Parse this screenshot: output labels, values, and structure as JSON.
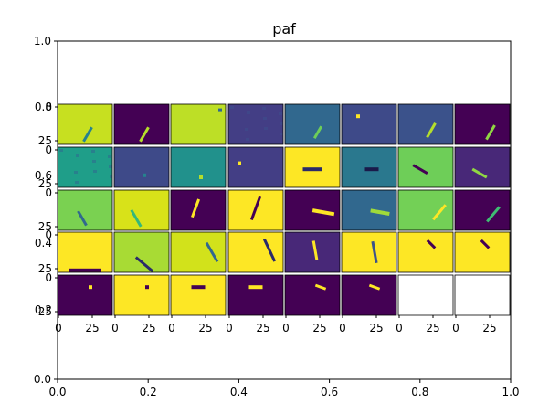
{
  "chart_data": {
    "type": "heatmap",
    "title": "paf",
    "outer_axes": {
      "xlim": [
        0.0,
        1.0
      ],
      "ylim": [
        0.0,
        1.0
      ],
      "x_ticks": [
        "0.0",
        "0.2",
        "0.4",
        "0.6",
        "0.8",
        "1.0"
      ],
      "y_ticks": [
        "0.0",
        "1.0"
      ]
    },
    "grid": {
      "rows": 5,
      "cols": 8,
      "panel_x_ticks": [
        "0",
        "25"
      ],
      "panel_y_ticks": [
        "0",
        "25"
      ],
      "row_label_overlaps": [
        "0.8",
        "0.6",
        "0.4",
        "0.2"
      ]
    },
    "colormap": "viridis",
    "panels": [
      {
        "bg": "#c7e020",
        "feature": {
          "x": 0.55,
          "y": 0.75,
          "kind": "streak",
          "color": "#26828e",
          "angle": -60,
          "len": 0.3
        }
      },
      {
        "bg": "#440154",
        "feature": {
          "x": 0.55,
          "y": 0.75,
          "kind": "streak",
          "color": "#b5de2b",
          "angle": -60,
          "len": 0.3
        }
      },
      {
        "bg": "#bddf26",
        "feature": {
          "x": 0.9,
          "y": 0.15,
          "kind": "dot",
          "color": "#31688e"
        }
      },
      {
        "bg": "#433e85",
        "feature": {
          "x": 0.5,
          "y": 0.5,
          "kind": "noise",
          "color": "#3e4a89"
        }
      },
      {
        "bg": "#31688e",
        "feature": {
          "x": 0.6,
          "y": 0.7,
          "kind": "streak",
          "color": "#6ece58",
          "angle": -60,
          "len": 0.25
        }
      },
      {
        "bg": "#3e4a89",
        "feature": {
          "x": 0.3,
          "y": 0.3,
          "kind": "dot",
          "color": "#fde725"
        }
      },
      {
        "bg": "#3b528b",
        "feature": {
          "x": 0.6,
          "y": 0.65,
          "kind": "streak",
          "color": "#b5de2b",
          "angle": -60,
          "len": 0.3
        }
      },
      {
        "bg": "#440154",
        "feature": {
          "x": 0.65,
          "y": 0.7,
          "kind": "streak",
          "color": "#90d743",
          "angle": -60,
          "len": 0.3
        }
      },
      {
        "bg": "#1f9e89",
        "feature": {
          "x": 0.5,
          "y": 0.5,
          "kind": "noise",
          "color": "#2a788e"
        }
      },
      {
        "bg": "#3e4a89",
        "feature": {
          "x": 0.55,
          "y": 0.7,
          "kind": "dot",
          "color": "#26828e"
        }
      },
      {
        "bg": "#21918c",
        "feature": {
          "x": 0.55,
          "y": 0.75,
          "kind": "dot",
          "color": "#b5de2b"
        }
      },
      {
        "bg": "#433e85",
        "feature": {
          "x": 0.2,
          "y": 0.4,
          "kind": "dot",
          "color": "#fde725"
        }
      },
      {
        "bg": "#fde725",
        "feature": {
          "x": 0.5,
          "y": 0.55,
          "kind": "bar",
          "color": "#2a2a6a",
          "angle": 0,
          "len": 0.35
        }
      },
      {
        "bg": "#2a788e",
        "feature": {
          "x": 0.55,
          "y": 0.55,
          "kind": "bar",
          "color": "#1a1a4a",
          "angle": 0,
          "len": 0.25
        }
      },
      {
        "bg": "#6ece58",
        "feature": {
          "x": 0.4,
          "y": 0.55,
          "kind": "streak",
          "color": "#440154",
          "angle": 30,
          "len": 0.3
        }
      },
      {
        "bg": "#482878",
        "feature": {
          "x": 0.45,
          "y": 0.65,
          "kind": "streak",
          "color": "#90d743",
          "angle": 30,
          "len": 0.3
        }
      },
      {
        "bg": "#7ad151",
        "feature": {
          "x": 0.45,
          "y": 0.7,
          "kind": "streak",
          "color": "#31688e",
          "angle": 60,
          "len": 0.3
        }
      },
      {
        "bg": "#d8e219",
        "feature": {
          "x": 0.4,
          "y": 0.7,
          "kind": "streak",
          "color": "#35b779",
          "angle": 60,
          "len": 0.35
        }
      },
      {
        "bg": "#440154",
        "feature": {
          "x": 0.45,
          "y": 0.45,
          "kind": "streak",
          "color": "#fde725",
          "angle": -70,
          "len": 0.35
        }
      },
      {
        "bg": "#fde725",
        "feature": {
          "x": 0.5,
          "y": 0.45,
          "kind": "streak",
          "color": "#440154",
          "angle": -70,
          "len": 0.45
        }
      },
      {
        "bg": "#440154",
        "feature": {
          "x": 0.7,
          "y": 0.55,
          "kind": "bar",
          "color": "#fde725",
          "angle": 10,
          "len": 0.4
        }
      },
      {
        "bg": "#31688e",
        "feature": {
          "x": 0.7,
          "y": 0.55,
          "kind": "bar",
          "color": "#9fda3a",
          "angle": 10,
          "len": 0.35
        }
      },
      {
        "bg": "#73d056",
        "feature": {
          "x": 0.75,
          "y": 0.55,
          "kind": "streak",
          "color": "#fde725",
          "angle": -50,
          "len": 0.35
        }
      },
      {
        "bg": "#440154",
        "feature": {
          "x": 0.7,
          "y": 0.6,
          "kind": "streak",
          "color": "#3fbc73",
          "angle": -50,
          "len": 0.35
        }
      },
      {
        "bg": "#fde725",
        "feature": {
          "x": 0.5,
          "y": 0.95,
          "kind": "bar",
          "color": "#440154",
          "angle": 0,
          "len": 0.6
        }
      },
      {
        "bg": "#a8db34",
        "feature": {
          "x": 0.55,
          "y": 0.8,
          "kind": "streak",
          "color": "#2a2a6a",
          "angle": 40,
          "len": 0.4
        }
      },
      {
        "bg": "#d2e21b",
        "feature": {
          "x": 0.75,
          "y": 0.5,
          "kind": "streak",
          "color": "#31688e",
          "angle": 60,
          "len": 0.4
        }
      },
      {
        "bg": "#fde725",
        "feature": {
          "x": 0.75,
          "y": 0.45,
          "kind": "streak",
          "color": "#2a2a6a",
          "angle": 65,
          "len": 0.45
        }
      },
      {
        "bg": "#482878",
        "feature": {
          "x": 0.55,
          "y": 0.45,
          "kind": "streak",
          "color": "#fde725",
          "angle": 80,
          "len": 0.35
        }
      },
      {
        "bg": "#fde725",
        "feature": {
          "x": 0.6,
          "y": 0.5,
          "kind": "streak",
          "color": "#3b528b",
          "angle": 80,
          "len": 0.4
        }
      },
      {
        "bg": "#fde725",
        "feature": {
          "x": 0.6,
          "y": 0.3,
          "kind": "streak",
          "color": "#440154",
          "angle": 45,
          "len": 0.2
        }
      },
      {
        "bg": "#fde725",
        "feature": {
          "x": 0.55,
          "y": 0.3,
          "kind": "streak",
          "color": "#440154",
          "angle": 45,
          "len": 0.2
        }
      },
      {
        "bg": "#440154",
        "feature": {
          "x": 0.6,
          "y": 0.3,
          "kind": "dot",
          "color": "#fde725"
        }
      },
      {
        "bg": "#fde725",
        "feature": {
          "x": 0.6,
          "y": 0.3,
          "kind": "dot",
          "color": "#440154"
        }
      },
      {
        "bg": "#fde725",
        "feature": {
          "x": 0.5,
          "y": 0.3,
          "kind": "bar",
          "color": "#440154",
          "angle": 0,
          "len": 0.25
        }
      },
      {
        "bg": "#440154",
        "feature": {
          "x": 0.5,
          "y": 0.3,
          "kind": "bar",
          "color": "#fde725",
          "angle": 0,
          "len": 0.25
        }
      },
      {
        "bg": "#440154",
        "feature": {
          "x": 0.65,
          "y": 0.3,
          "kind": "streak",
          "color": "#fde725",
          "angle": 20,
          "len": 0.2
        }
      },
      {
        "bg": "#440154",
        "feature": {
          "x": 0.6,
          "y": 0.3,
          "kind": "streak",
          "color": "#fde725",
          "angle": 20,
          "len": 0.2
        }
      },
      {
        "bg": null
      },
      {
        "bg": null
      }
    ]
  }
}
